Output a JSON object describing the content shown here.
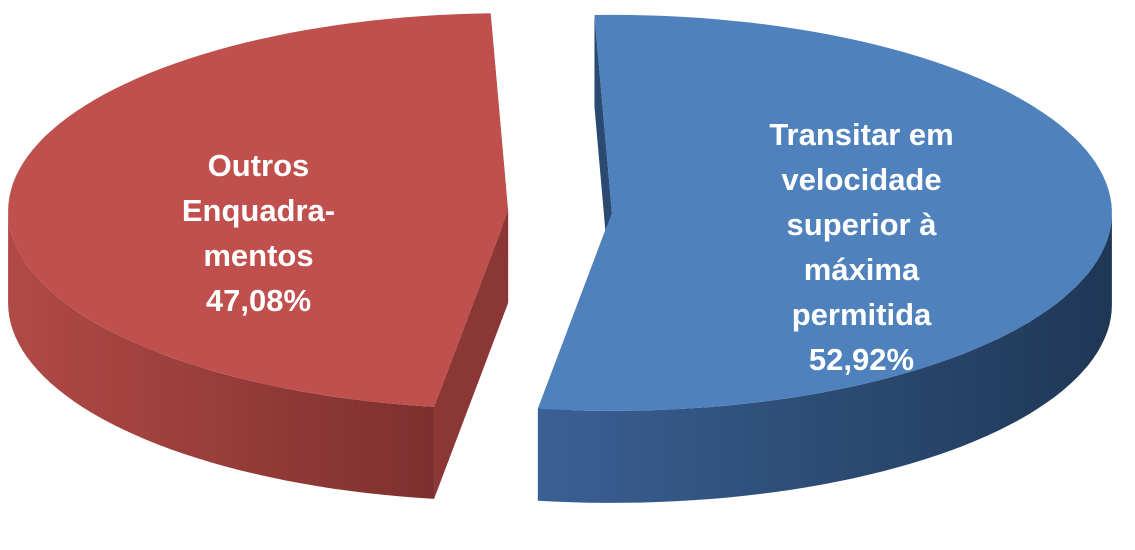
{
  "chart_data": {
    "type": "pie",
    "three_d": true,
    "exploded": true,
    "categories": [
      "Outros Enquadra-mentos",
      "Transitar em velocidade superior à máxima permitida"
    ],
    "values": [
      47.08,
      52.92
    ],
    "value_labels": [
      "47,08%",
      "52,92%"
    ],
    "colors": [
      "#c0504d",
      "#4f81bd"
    ]
  }
}
